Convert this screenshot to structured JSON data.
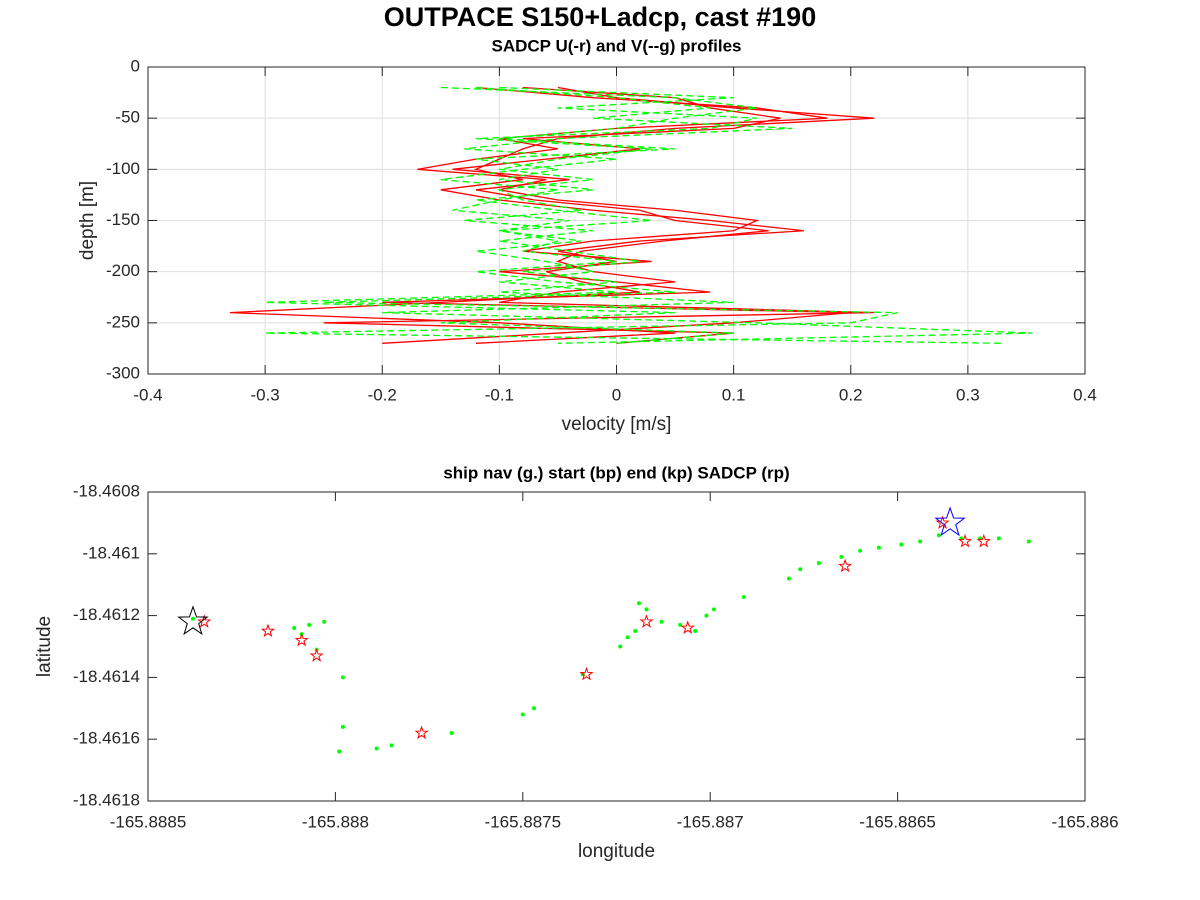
{
  "title": "OUTPACE S150+Ladcp, cast #190",
  "chart_data": [
    {
      "type": "line",
      "title": "SADCP U(-r) and V(--g) profiles",
      "xlabel": "velocity [m/s]",
      "ylabel": "depth [m]",
      "xlim": [
        -0.4,
        0.4
      ],
      "xticks": [
        -0.4,
        -0.3,
        -0.2,
        -0.1,
        0,
        0.1,
        0.2,
        0.3,
        0.4
      ],
      "ylim": [
        -300,
        0
      ],
      "yticks": [
        -300,
        -250,
        -200,
        -150,
        -100,
        -50,
        0
      ],
      "grid": true,
      "y": [
        -20,
        -30,
        -40,
        -50,
        -60,
        -70,
        -80,
        -90,
        -100,
        -110,
        -120,
        -130,
        -140,
        -150,
        -160,
        -170,
        -180,
        -190,
        -200,
        -210,
        -220,
        -230,
        -240,
        -250,
        -260,
        -270
      ],
      "series": [
        {
          "color": "#ff0000",
          "dash": false,
          "values": [
            -0.05,
            0.0,
            0.1,
            0.22,
            0.05,
            -0.05,
            -0.08,
            -0.1,
            -0.12,
            -0.08,
            -0.15,
            -0.1,
            -0.02,
            0.08,
            0.16,
            0.02,
            -0.05,
            0.0,
            -0.06,
            -0.03,
            0.02,
            -0.15,
            -0.33,
            -0.1,
            0.05,
            -0.12
          ]
        },
        {
          "color": "#ff0000",
          "dash": false,
          "values": [
            -0.12,
            -0.02,
            0.12,
            0.18,
            0.0,
            -0.1,
            -0.05,
            -0.12,
            -0.17,
            -0.06,
            -0.1,
            -0.05,
            0.05,
            0.12,
            0.1,
            -0.02,
            -0.08,
            0.03,
            -0.1,
            0.0,
            0.08,
            -0.2,
            0.2,
            0.1,
            -0.05,
            -0.2
          ]
        },
        {
          "color": "#ff0000",
          "dash": false,
          "values": [
            -0.08,
            0.05,
            0.08,
            0.14,
            0.1,
            -0.08,
            0.02,
            -0.06,
            -0.14,
            -0.04,
            -0.12,
            -0.07,
            0.02,
            0.05,
            0.13,
            0.04,
            -0.03,
            -0.05,
            -0.02,
            0.05,
            -0.05,
            -0.1,
            0.22,
            -0.25,
            0.1,
            0.0
          ]
        },
        {
          "color": "#00ff00",
          "dash": true,
          "values": [
            -0.15,
            0.05,
            0.12,
            0.05,
            0.0,
            -0.1,
            0.05,
            -0.12,
            -0.05,
            -0.1,
            -0.02,
            -0.12,
            -0.05,
            0.03,
            -0.1,
            -0.05,
            -0.08,
            0.0,
            -0.12,
            -0.05,
            0.05,
            -0.25,
            0.24,
            0.2,
            -0.3,
            0.33
          ]
        },
        {
          "color": "#00ff00",
          "dash": true,
          "values": [
            -0.1,
            0.1,
            -0.05,
            0.12,
            0.08,
            -0.12,
            0.03,
            -0.05,
            -0.1,
            -0.02,
            -0.1,
            -0.08,
            -0.03,
            -0.13,
            -0.02,
            -0.1,
            -0.04,
            0.02,
            -0.08,
            0.0,
            -0.1,
            0.1,
            -0.2,
            0.12,
            0.355,
            -0.05
          ]
        },
        {
          "color": "#00ff00",
          "dash": true,
          "values": [
            -0.12,
            0.0,
            0.08,
            -0.02,
            0.15,
            -0.05,
            -0.13,
            0.0,
            -0.08,
            -0.15,
            -0.05,
            -0.1,
            -0.14,
            -0.04,
            -0.1,
            -0.03,
            -0.12,
            -0.06,
            -0.02,
            -0.1,
            0.0,
            -0.3,
            0.05,
            -0.15,
            0.1,
            0.0
          ]
        }
      ]
    },
    {
      "type": "scatter",
      "title": "ship nav (g.) start (bp) end (kp) SADCP (rp)",
      "xlabel": "longitude",
      "ylabel": "latitude",
      "xlim": [
        -165.8885,
        -165.886
      ],
      "xticks": [
        -165.8885,
        -165.888,
        -165.8875,
        -165.887,
        -165.8865,
        -165.886
      ],
      "ylim": [
        -18.4618,
        -18.4608
      ],
      "yticks": [
        -18.4618,
        -18.4616,
        -18.4614,
        -18.4612,
        -18.461,
        -18.4608
      ],
      "grid": false,
      "series": [
        {
          "color": "#00ff00",
          "marker": "dot",
          "x": [
            -165.88838,
            -165.88811,
            -165.88807,
            -165.88803,
            -165.88809,
            -165.88805,
            -165.88798,
            -165.88798,
            -165.88799,
            -165.88789,
            -165.88785,
            -165.88769,
            -165.8875,
            -165.88747,
            -165.88734,
            -165.88724,
            -165.88722,
            -165.8872,
            -165.88719,
            -165.88717,
            -165.88713,
            -165.88708,
            -165.88704,
            -165.88701,
            -165.88699,
            -165.88691,
            -165.88679,
            -165.88676,
            -165.88671,
            -165.88665,
            -165.8866,
            -165.88655,
            -165.88649,
            -165.88644,
            -165.88639,
            -165.88633,
            -165.88628,
            -165.88623,
            -165.88615
          ],
          "values": [
            -18.46121,
            -18.46124,
            -18.46123,
            -18.46122,
            -18.46126,
            -18.46131,
            -18.4614,
            -18.46156,
            -18.46164,
            -18.46163,
            -18.46162,
            -18.46158,
            -18.46152,
            -18.4615,
            -18.46139,
            -18.4613,
            -18.46127,
            -18.46125,
            -18.46116,
            -18.46118,
            -18.46122,
            -18.46123,
            -18.46125,
            -18.4612,
            -18.46118,
            -18.46114,
            -18.46108,
            -18.46105,
            -18.46103,
            -18.46101,
            -18.46099,
            -18.46098,
            -18.46097,
            -18.46096,
            -18.46094,
            -18.46095,
            -18.46095,
            -18.46095,
            -18.46096
          ]
        },
        {
          "color": "#ff0000",
          "marker": "star",
          "size": 6,
          "x": [
            -165.88835,
            -165.88818,
            -165.88809,
            -165.88805,
            -165.88777,
            -165.88733,
            -165.88717,
            -165.88706,
            -165.88664,
            -165.88638,
            -165.88632,
            -165.88627
          ],
          "values": [
            -18.46122,
            -18.46125,
            -18.46128,
            -18.46133,
            -18.46158,
            -18.46139,
            -18.46122,
            -18.46124,
            -18.46104,
            -18.4609,
            -18.46096,
            -18.46096
          ]
        },
        {
          "color": "#000000",
          "marker": "star",
          "size": 15,
          "x": [
            -165.88838
          ],
          "values": [
            -18.46122
          ]
        },
        {
          "color": "#0000ff",
          "marker": "star",
          "size": 15,
          "x": [
            -165.88636
          ],
          "values": [
            -18.4609
          ]
        }
      ]
    }
  ]
}
